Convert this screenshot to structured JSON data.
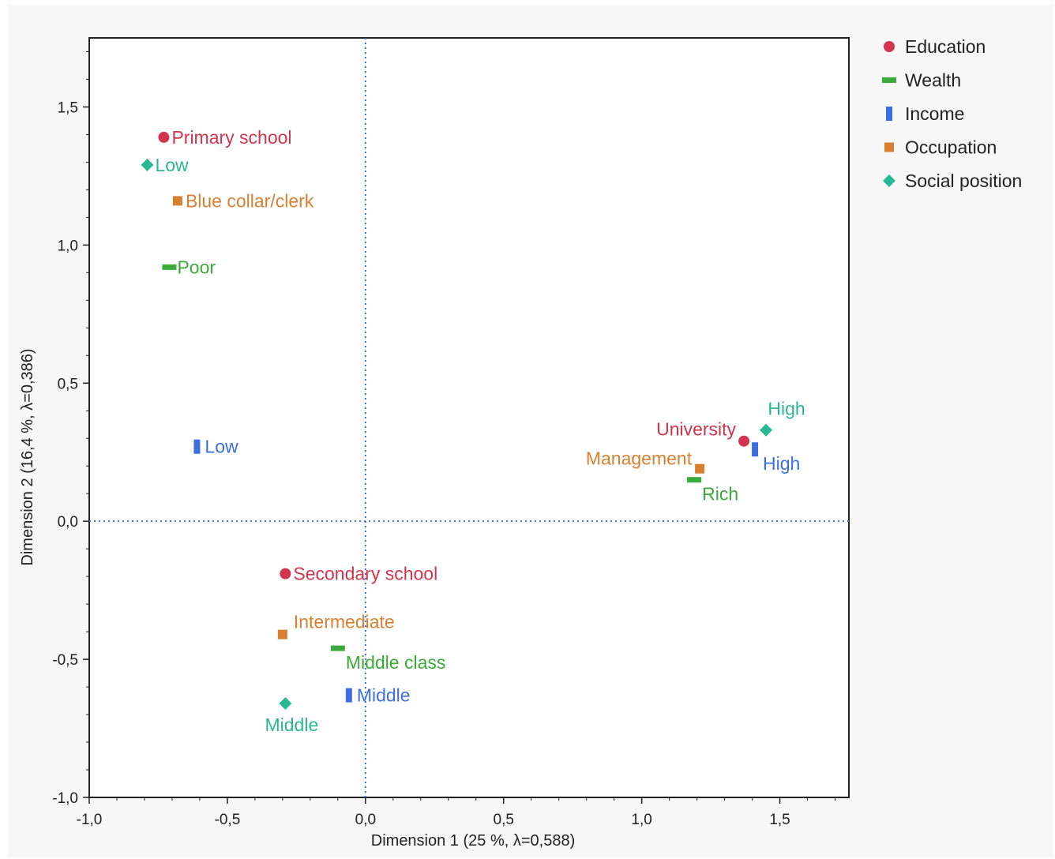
{
  "chart_data": {
    "type": "scatter",
    "xlabel": "Dimension 1  (25 %, λ=0,588)",
    "ylabel": "Dimension 2  (16,4 %, λ=0,386)",
    "xlim": [
      -1.0,
      1.75
    ],
    "ylim": [
      -1.0,
      1.75
    ],
    "xticks": [
      -1.0,
      -0.5,
      0.0,
      0.5,
      1.0,
      1.5
    ],
    "xtick_labels": [
      "-1,0",
      "-0,5",
      "0,0",
      "0,5",
      "1,0",
      "1,5"
    ],
    "yticks": [
      -1.0,
      -0.5,
      0.0,
      0.5,
      1.0,
      1.5
    ],
    "ytick_labels": [
      "-1,0",
      "-0,5",
      "0,0",
      "0,5",
      "1,0",
      "1,5"
    ],
    "reference_lines": {
      "x": 0.0,
      "y": 0.0,
      "style": "dotted",
      "color": "#3a6fd8"
    },
    "grid": false,
    "legend_position": "top-right",
    "series": [
      {
        "name": "Education",
        "marker": "circle",
        "color": "#d2344e",
        "points": [
          {
            "label": "Primary school",
            "x": -0.73,
            "y": 1.39,
            "label_side": "right"
          },
          {
            "label": "Secondary school",
            "x": -0.29,
            "y": -0.19,
            "label_side": "right"
          },
          {
            "label": "University",
            "x": 1.37,
            "y": 0.29,
            "label_side": "left-above"
          }
        ]
      },
      {
        "name": "Wealth",
        "marker": "hbar",
        "color": "#3aaa3a",
        "points": [
          {
            "label": "Poor",
            "x": -0.71,
            "y": 0.92,
            "label_side": "right"
          },
          {
            "label": "Middle class",
            "x": -0.1,
            "y": -0.46,
            "label_side": "right-below"
          },
          {
            "label": "Rich",
            "x": 1.19,
            "y": 0.15,
            "label_side": "right-below"
          }
        ]
      },
      {
        "name": "Income",
        "marker": "vbar",
        "color": "#3c6fe0",
        "points": [
          {
            "label": "Low",
            "x": -0.61,
            "y": 0.27,
            "label_side": "right"
          },
          {
            "label": "Middle",
            "x": -0.06,
            "y": -0.63,
            "label_side": "right"
          },
          {
            "label": "High",
            "x": 1.41,
            "y": 0.26,
            "label_side": "right-below"
          }
        ]
      },
      {
        "name": "Occupation",
        "marker": "square",
        "color": "#d98030",
        "points": [
          {
            "label": "Blue collar/clerk",
            "x": -0.68,
            "y": 1.16,
            "label_side": "right"
          },
          {
            "label": "Intermediate",
            "x": -0.3,
            "y": -0.41,
            "label_side": "right-above"
          },
          {
            "label": "Management",
            "x": 1.21,
            "y": 0.19,
            "label_side": "left"
          }
        ]
      },
      {
        "name": "Social position",
        "marker": "diamond",
        "color": "#2ab894",
        "points": [
          {
            "label": "Low",
            "x": -0.79,
            "y": 1.29,
            "label_side": "right"
          },
          {
            "label": "Middle",
            "x": -0.29,
            "y": -0.66,
            "label_side": "below"
          },
          {
            "label": "High",
            "x": 1.45,
            "y": 0.33,
            "label_side": "above"
          }
        ]
      }
    ]
  }
}
